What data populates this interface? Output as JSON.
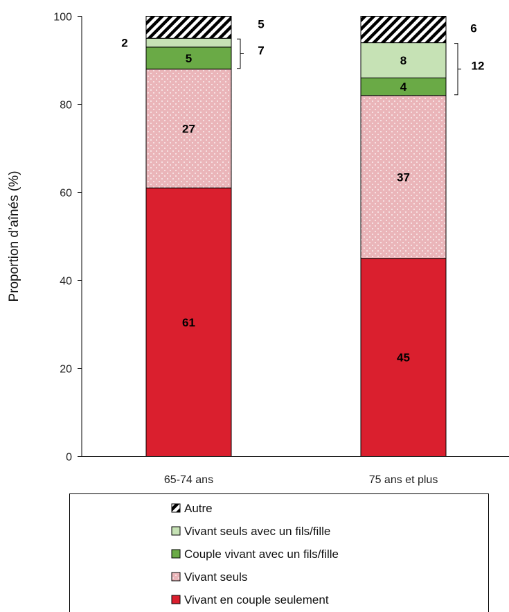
{
  "chart_data": {
    "type": "bar",
    "stacked": true,
    "categories": [
      "65-74 ans",
      "75 ans et plus"
    ],
    "series": [
      {
        "name": "Vivant en couple seulement",
        "values": [
          61,
          45
        ],
        "color": "#DA1F2E",
        "pattern": "solid"
      },
      {
        "name": "Vivant seuls",
        "values": [
          27,
          37
        ],
        "color": "#EAB5B9",
        "pattern": "dots"
      },
      {
        "name": "Couple vivant avec un fils/fille",
        "values": [
          5,
          4
        ],
        "color": "#6AAA46",
        "pattern": "solid"
      },
      {
        "name": "Vivant seuls avec un fils/fille",
        "values": [
          2,
          8
        ],
        "color": "#C6E2B5",
        "pattern": "solid"
      },
      {
        "name": "Autre",
        "values": [
          5,
          6
        ],
        "color": "#000000",
        "pattern": "hatch"
      }
    ],
    "labels": [
      [
        "61",
        "45"
      ],
      [
        "27",
        "37"
      ],
      [
        "5",
        "4"
      ],
      [
        "2",
        "8"
      ],
      [
        "5",
        "6"
      ]
    ],
    "bracket_totals": [
      "7",
      "12"
    ],
    "ylabel": "Proportion d’aînés (%)",
    "xlabel": "",
    "ylim": [
      0,
      100
    ],
    "yticks": [
      "0",
      "20",
      "40",
      "60",
      "80",
      "100"
    ],
    "grid": false,
    "legend_position": "bottom",
    "legend_order": [
      4,
      3,
      2,
      1,
      0
    ]
  }
}
